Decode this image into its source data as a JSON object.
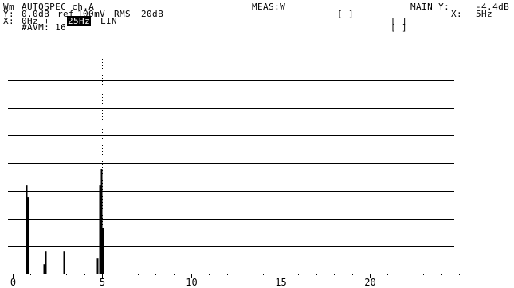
{
  "header": {
    "line1": {
      "c1": "Wm",
      "title": "AUTOSPEC ch.A",
      "meas": "MEAS:W",
      "main_y_label": "MAIN Y:",
      "main_y_value": "-4.4dB"
    },
    "line2": {
      "c1": "Y:",
      "level": "0.0dB",
      "ref": "ref",
      "ref_value": "100mV",
      "mode": "RMS",
      "range": "20dB",
      "box": "[ ]",
      "x_label": "X:",
      "x_value": "5Hz"
    },
    "line3": {
      "c1": "X:",
      "start": "0Hz +",
      "span": "25Hz",
      "scale": "LIN",
      "box": "[ ]"
    },
    "line4": {
      "avg": "#AVM: 16",
      "box": "[ ]"
    }
  },
  "chart_data": {
    "type": "bar",
    "x_ticks": [
      "0",
      "5",
      "10",
      "15",
      "20"
    ],
    "xlim": [
      0,
      25
    ],
    "y_db_range": [
      -80,
      0
    ],
    "cursor_x": 5,
    "grid": true,
    "peaks": [
      {
        "x": 0.75,
        "db": -48.1
      },
      {
        "x": 0.85,
        "db": -52.4
      },
      {
        "x": 0.75,
        "db": -75.1
      },
      {
        "x": 1.85,
        "db": -72.0
      },
      {
        "x": 1.75,
        "db": -76.6
      },
      {
        "x": 2.85,
        "db": -72.0
      },
      {
        "x": 4.85,
        "db": -48.1
      },
      {
        "x": 4.95,
        "db": -42.1
      },
      {
        "x": 5.05,
        "db": -63.3
      },
      {
        "x": 4.75,
        "db": -74.3
      }
    ]
  }
}
